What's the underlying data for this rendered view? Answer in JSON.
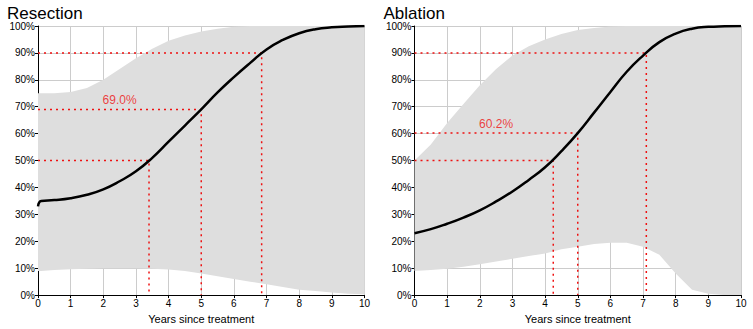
{
  "chart_data": [
    {
      "type": "line",
      "title": "Resection",
      "xlabel": "Years since treatment",
      "x": [
        0,
        0.1,
        0.5,
        1,
        1.5,
        2,
        2.5,
        3,
        3.5,
        4,
        4.5,
        5,
        5.5,
        6,
        6.5,
        7,
        7.5,
        8,
        8.5,
        9,
        9.5,
        10
      ],
      "values": [
        33,
        35,
        35.3,
        36,
        37.3,
        39.3,
        42.3,
        46,
        51,
        57,
        63,
        69,
        75.3,
        81,
        86.3,
        91.3,
        94.8,
        97.3,
        98.8,
        99.5,
        99.8,
        100
      ],
      "color": "#000000",
      "band": {
        "lower": [
          9,
          9,
          9.3,
          9.6,
          9.8,
          10,
          10,
          10,
          9.8,
          9.5,
          9,
          8,
          7,
          6,
          5,
          4,
          3,
          2,
          1.5,
          1,
          0.5,
          0.3
        ],
        "upper": [
          75,
          75,
          75,
          75.5,
          77,
          80,
          84,
          88,
          91.5,
          94.5,
          96.5,
          98,
          99,
          99.7,
          100,
          100,
          100,
          100,
          100,
          100,
          100,
          100
        ],
        "color": "#dedede"
      },
      "markers": {
        "color": "#ee1111",
        "line_style": "dotted",
        "points": [
          {
            "x": 3.4,
            "y": 50
          },
          {
            "x": 5,
            "y": 69,
            "label": "69.0%"
          },
          {
            "x": 6.85,
            "y": 90
          }
        ]
      },
      "xlim": [
        0,
        10
      ],
      "xticks": [
        0,
        1,
        2,
        3,
        4,
        5,
        6,
        7,
        8,
        9,
        10
      ],
      "ylim": [
        0,
        100
      ],
      "yticks": [
        {
          "value": 0,
          "label": "0%"
        },
        {
          "value": 10,
          "label": "10%"
        },
        {
          "value": 20,
          "label": "20%"
        },
        {
          "value": 30,
          "label": "30%"
        },
        {
          "value": 40,
          "label": "40%"
        },
        {
          "value": 50,
          "label": "50%"
        },
        {
          "value": 60,
          "label": "60%"
        },
        {
          "value": 70,
          "label": "70%"
        },
        {
          "value": 80,
          "label": "80%"
        },
        {
          "value": 90,
          "label": "90%"
        },
        {
          "value": 100,
          "label": "100%"
        }
      ],
      "grid": true
    },
    {
      "type": "line",
      "title": "Ablation",
      "xlabel": "Years since treatment",
      "x": [
        0,
        0.5,
        1,
        1.5,
        2,
        2.5,
        3,
        3.5,
        4,
        4.5,
        5,
        5.5,
        6,
        6.5,
        7,
        7.5,
        8,
        8.5,
        9,
        9.5,
        10
      ],
      "values": [
        23,
        24.5,
        26.5,
        28.8,
        31.5,
        34.8,
        38.5,
        42.8,
        47.5,
        53.5,
        60.2,
        67.8,
        75.5,
        83,
        89,
        94,
        97.2,
        99,
        99.7,
        99.9,
        100
      ],
      "color": "#000000",
      "band": {
        "lower": [
          9,
          9.3,
          9.8,
          10.5,
          11.5,
          12.5,
          13.5,
          14.5,
          15.5,
          17,
          18,
          19,
          19.5,
          19.5,
          18,
          15,
          8,
          2,
          0.5,
          0,
          0
        ],
        "upper": [
          50,
          56,
          64,
          71,
          78,
          84,
          89,
          92.5,
          95,
          97,
          98.5,
          99.3,
          99.8,
          100,
          100,
          100,
          100,
          100,
          100,
          100,
          100
        ],
        "color": "#dedede"
      },
      "markers": {
        "color": "#ee1111",
        "line_style": "dotted",
        "points": [
          {
            "x": 4.25,
            "y": 50
          },
          {
            "x": 5,
            "y": 60.2,
            "label": "60.2%"
          },
          {
            "x": 7.1,
            "y": 90
          }
        ]
      },
      "xlim": [
        0,
        10
      ],
      "xticks": [
        0,
        1,
        2,
        3,
        4,
        5,
        6,
        7,
        8,
        9,
        10
      ],
      "ylim": [
        0,
        100
      ],
      "yticks": [
        {
          "value": 0,
          "label": "0%"
        },
        {
          "value": 10,
          "label": "10%"
        },
        {
          "value": 20,
          "label": "20%"
        },
        {
          "value": 30,
          "label": "30%"
        },
        {
          "value": 40,
          "label": "40%"
        },
        {
          "value": 50,
          "label": "50%"
        },
        {
          "value": 60,
          "label": "60%"
        },
        {
          "value": 70,
          "label": "70%"
        },
        {
          "value": 80,
          "label": "80%"
        },
        {
          "value": 90,
          "label": "90%"
        },
        {
          "value": 100,
          "label": "100%"
        }
      ],
      "grid": true
    }
  ]
}
